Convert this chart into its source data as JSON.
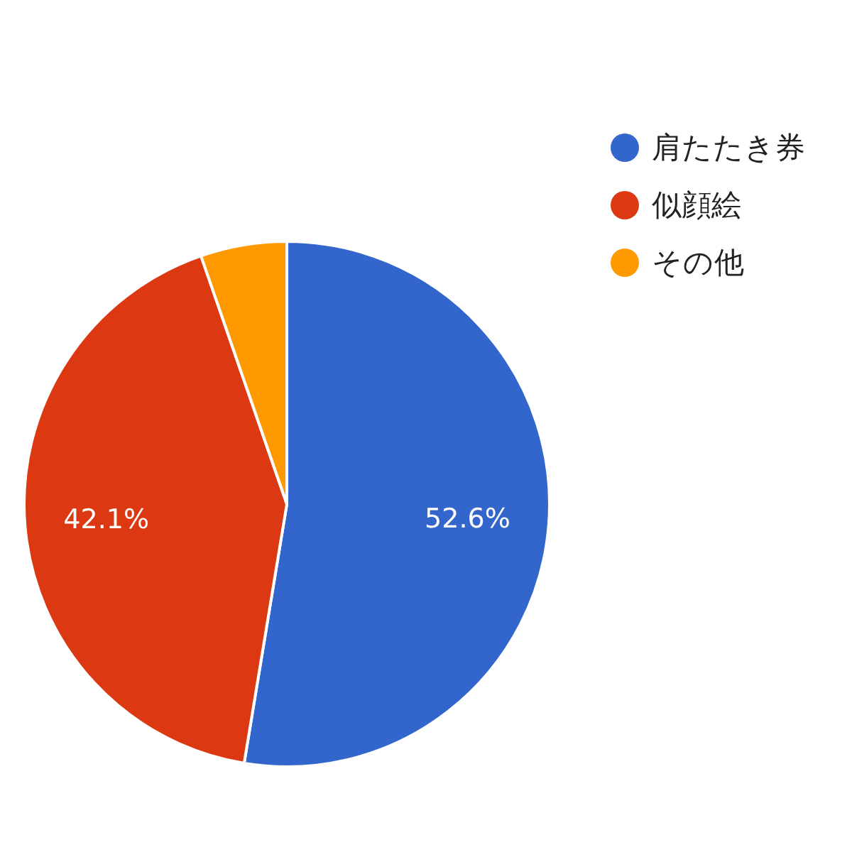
{
  "chart_data": {
    "type": "pie",
    "categories": [
      "肩たたき券",
      "似顔絵",
      "その他"
    ],
    "values": [
      52.6,
      42.1,
      5.3
    ],
    "colors": [
      "#3366cc",
      "#dc3912",
      "#ff9900"
    ],
    "value_labels": [
      "52.6%",
      "42.1%",
      null
    ],
    "legend": "top right"
  }
}
